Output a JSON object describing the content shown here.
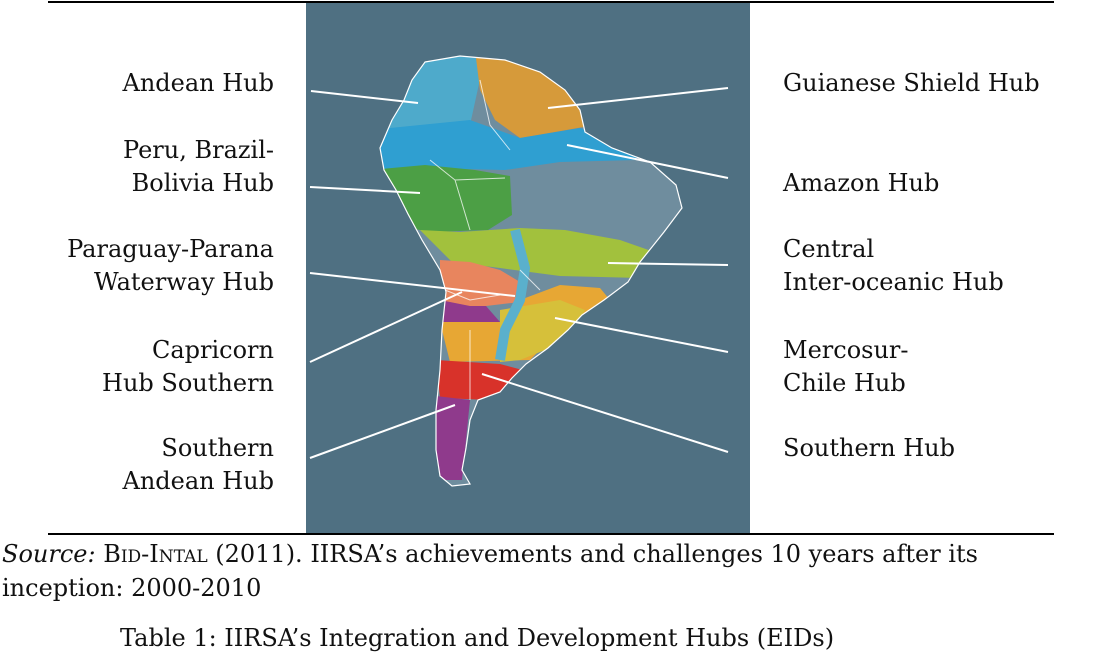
{
  "figure": {
    "hubs_left": [
      {
        "id": "andean",
        "text": "Andean Hub"
      },
      {
        "id": "peru",
        "text": "Peru, Brazil-\nBolivia Hub"
      },
      {
        "id": "paraguay",
        "text": "Paraguay-Parana\nWaterway Hub"
      },
      {
        "id": "capricorn",
        "text": "Capricorn\nHub Southern"
      },
      {
        "id": "southern-andean",
        "text": "Southern\nAndean Hub"
      }
    ],
    "hubs_right": [
      {
        "id": "guianese",
        "text": "Guianese Shield Hub"
      },
      {
        "id": "amazon",
        "text": "Amazon Hub"
      },
      {
        "id": "central",
        "text": "Central\nInter-oceanic Hub"
      },
      {
        "id": "mercosur",
        "text": "Mercosur-\nChile Hub"
      },
      {
        "id": "southern",
        "text": "Southern Hub"
      }
    ],
    "colors": {
      "background": "#4f7082",
      "andean": "#4eaacb",
      "guianese": "#d69a3a",
      "amazon": "#2f9fd1",
      "brazil_gray": "#6f8d9e",
      "peru_bolivia": "#4c9f45",
      "central": "#a2c13d",
      "paraguay": "#e8855e",
      "capricorn": "#e7a734",
      "mercosur": "#d6c03a",
      "southern_andean": "#8f3a8c",
      "southern": "#d8322a",
      "waterway": "#5ab0cc"
    }
  },
  "caption": {
    "source_label": "Source:",
    "author": "Bid-Intal",
    "rest": " (2011). IIRSA’s achievements and challenges 10 years after its inception: 2000-2010"
  },
  "next_caption_fragment": "Table 1: IIRSA’s Integration and Development Hubs (EIDs)"
}
